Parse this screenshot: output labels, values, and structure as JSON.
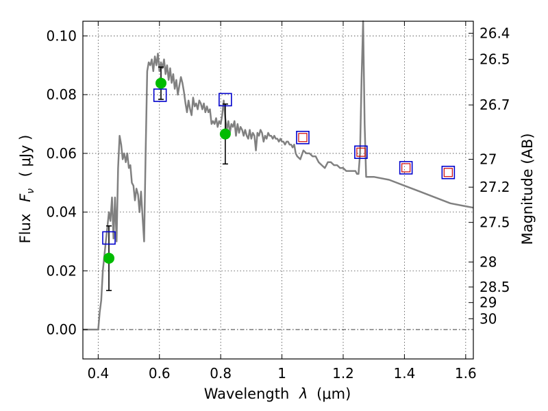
{
  "chart_data": {
    "type": "scatter",
    "title": "",
    "xlabel": "Wavelength",
    "xlabel_symbol": "λ",
    "xlabel_unit": "(μm)",
    "ylabel": "Flux",
    "ylabel_symbol": "F",
    "ylabel_sub": "ν",
    "ylabel_unit": "( μJy )",
    "y2label": "Magnitude (AB)",
    "xlim": [
      0.35,
      1.625
    ],
    "ylim": [
      -0.01,
      0.105
    ],
    "grid": true,
    "x_ticks": [
      0.4,
      0.6,
      0.8,
      1.0,
      1.2,
      1.4,
      1.6
    ],
    "x_tick_labels": [
      "0.4",
      "0.6",
      "0.8",
      "1",
      "1.2",
      "1.4",
      "1.6"
    ],
    "y_ticks": [
      0.0,
      0.02,
      0.04,
      0.06,
      0.08,
      0.1
    ],
    "y_tick_labels": [
      "0.00",
      "0.02",
      "0.04",
      "0.06",
      "0.08",
      "0.10"
    ],
    "y2_ticks": [
      {
        "label": "26.4",
        "flux": 0.1009
      },
      {
        "label": "26.5",
        "flux": 0.092
      },
      {
        "label": "26.7",
        "flux": 0.0765
      },
      {
        "label": "27",
        "flux": 0.058
      },
      {
        "label": "27.2",
        "flux": 0.0485
      },
      {
        "label": "27.5",
        "flux": 0.0365
      },
      {
        "label": "28",
        "flux": 0.023
      },
      {
        "label": "28.5",
        "flux": 0.0145
      },
      {
        "label": "29",
        "flux": 0.0092
      },
      {
        "label": "30",
        "flux": 0.0037
      }
    ],
    "colors": {
      "sed": "#808080",
      "measured_fill": "#00bb00",
      "errorbar": "#000000",
      "model_blue": "#0000cc",
      "model_red": "#cc0000",
      "zero_line": "#000000"
    },
    "series": [
      {
        "kind": "line",
        "x": [
          0.35,
          0.4,
          0.405,
          0.41,
          0.415,
          0.42,
          0.425,
          0.43,
          0.435,
          0.44,
          0.445,
          0.45,
          0.455,
          0.46,
          0.465,
          0.47,
          0.475,
          0.48,
          0.485,
          0.49,
          0.495,
          0.5,
          0.505,
          0.51,
          0.515,
          0.52,
          0.525,
          0.53,
          0.535,
          0.54,
          0.545,
          0.55,
          0.555,
          0.56,
          0.565,
          0.57,
          0.575,
          0.58,
          0.585,
          0.59,
          0.595,
          0.6,
          0.605,
          0.61,
          0.615,
          0.62,
          0.625,
          0.63,
          0.635,
          0.64,
          0.645,
          0.65,
          0.655,
          0.66,
          0.665,
          0.67,
          0.675,
          0.68,
          0.685,
          0.69,
          0.695,
          0.7,
          0.705,
          0.71,
          0.715,
          0.72,
          0.725,
          0.73,
          0.735,
          0.74,
          0.745,
          0.75,
          0.755,
          0.76,
          0.765,
          0.77,
          0.775,
          0.78,
          0.785,
          0.79,
          0.795,
          0.8,
          0.805,
          0.81,
          0.815,
          0.82,
          0.825,
          0.83,
          0.835,
          0.84,
          0.845,
          0.85,
          0.855,
          0.86,
          0.865,
          0.87,
          0.875,
          0.88,
          0.885,
          0.89,
          0.895,
          0.9,
          0.905,
          0.91,
          0.915,
          0.92,
          0.925,
          0.93,
          0.935,
          0.94,
          0.945,
          0.95,
          0.955,
          0.96,
          0.965,
          0.97,
          0.975,
          0.98,
          0.985,
          0.99,
          0.995,
          1.0,
          1.005,
          1.01,
          1.015,
          1.02,
          1.025,
          1.03,
          1.035,
          1.04,
          1.045,
          1.05,
          1.06,
          1.07,
          1.08,
          1.09,
          1.1,
          1.11,
          1.12,
          1.13,
          1.14,
          1.15,
          1.16,
          1.17,
          1.18,
          1.19,
          1.2,
          1.21,
          1.22,
          1.23,
          1.24,
          1.245,
          1.25,
          1.255,
          1.26,
          1.265,
          1.27,
          1.275,
          1.3,
          1.35,
          1.4,
          1.45,
          1.5,
          1.55,
          1.6,
          1.625
        ],
        "y": [
          0.0,
          0.0,
          0.006,
          0.01,
          0.02,
          0.025,
          0.03,
          0.035,
          0.04,
          0.037,
          0.045,
          0.031,
          0.045,
          0.03,
          0.055,
          0.066,
          0.063,
          0.058,
          0.06,
          0.057,
          0.06,
          0.055,
          0.056,
          0.05,
          0.049,
          0.044,
          0.048,
          0.046,
          0.04,
          0.047,
          0.038,
          0.03,
          0.06,
          0.088,
          0.091,
          0.09,
          0.092,
          0.088,
          0.093,
          0.09,
          0.094,
          0.088,
          0.091,
          0.089,
          0.092,
          0.087,
          0.09,
          0.085,
          0.089,
          0.084,
          0.087,
          0.082,
          0.085,
          0.08,
          0.083,
          0.086,
          0.084,
          0.081,
          0.077,
          0.074,
          0.078,
          0.075,
          0.073,
          0.079,
          0.076,
          0.077,
          0.075,
          0.078,
          0.077,
          0.075,
          0.077,
          0.074,
          0.076,
          0.074,
          0.075,
          0.07,
          0.071,
          0.07,
          0.072,
          0.069,
          0.071,
          0.07,
          0.073,
          0.078,
          0.072,
          0.068,
          0.071,
          0.067,
          0.07,
          0.069,
          0.071,
          0.066,
          0.07,
          0.067,
          0.069,
          0.068,
          0.066,
          0.068,
          0.066,
          0.065,
          0.068,
          0.065,
          0.067,
          0.066,
          0.061,
          0.067,
          0.066,
          0.068,
          0.067,
          0.064,
          0.066,
          0.065,
          0.067,
          0.066,
          0.066,
          0.065,
          0.066,
          0.065,
          0.065,
          0.064,
          0.065,
          0.064,
          0.064,
          0.063,
          0.064,
          0.064,
          0.063,
          0.063,
          0.062,
          0.063,
          0.06,
          0.059,
          0.058,
          0.061,
          0.06,
          0.06,
          0.059,
          0.059,
          0.057,
          0.056,
          0.055,
          0.057,
          0.057,
          0.056,
          0.056,
          0.055,
          0.055,
          0.054,
          0.054,
          0.054,
          0.054,
          0.053,
          0.053,
          0.06,
          0.085,
          0.105,
          0.07,
          0.052,
          0.052,
          0.051,
          0.049,
          0.047,
          0.045,
          0.043,
          0.042,
          0.0415
        ]
      },
      {
        "kind": "errorbar",
        "x": [
          0.435,
          0.605,
          0.815
        ],
        "y": [
          0.0243,
          0.0839,
          0.0666
        ],
        "yerr": [
          0.011,
          0.0055,
          0.0102
        ]
      },
      {
        "kind": "square",
        "x": [
          0.435,
          0.602,
          0.815,
          1.068,
          1.258,
          1.405,
          1.543
        ],
        "y": [
          0.0312,
          0.0798,
          0.0783,
          0.0654,
          0.0604,
          0.0551,
          0.0535
        ]
      },
      {
        "kind": "square-inner",
        "x": [
          1.068,
          1.258,
          1.405,
          1.543
        ],
        "y": [
          0.0654,
          0.0604,
          0.0551,
          0.0535
        ]
      }
    ]
  }
}
